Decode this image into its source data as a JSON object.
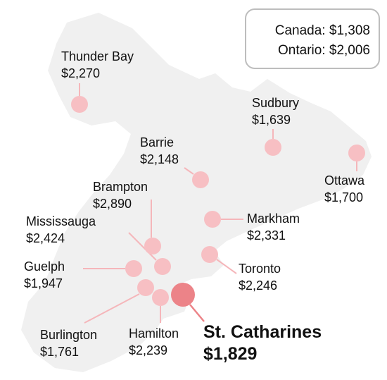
{
  "summary": {
    "canada_label": "Canada:",
    "canada_value": "$1,308",
    "ontario_label": "Ontario:",
    "ontario_value": "$2,006"
  },
  "colors": {
    "land": "#f0f0f0",
    "marker": "#f7bfc3",
    "marker_featured": "#ec8388",
    "leader_line": "#f5b6ba",
    "leader_featured": "#ec8388"
  },
  "cities": [
    {
      "id": "thunder-bay",
      "name": "Thunder Bay",
      "value": "$2,270"
    },
    {
      "id": "sudbury",
      "name": "Sudbury",
      "value": "$1,639"
    },
    {
      "id": "barrie",
      "name": "Barrie",
      "value": "$2,148"
    },
    {
      "id": "ottawa",
      "name": "Ottawa",
      "value": "$1,700"
    },
    {
      "id": "brampton",
      "name": "Brampton",
      "value": "$2,890"
    },
    {
      "id": "mississauga",
      "name": "Mississauga",
      "value": "$2,424"
    },
    {
      "id": "markham",
      "name": "Markham",
      "value": "$2,331"
    },
    {
      "id": "guelph",
      "name": "Guelph",
      "value": "$1,947"
    },
    {
      "id": "toronto",
      "name": "Toronto",
      "value": "$2,246"
    },
    {
      "id": "burlington",
      "name": "Burlington",
      "value": "$1,761"
    },
    {
      "id": "hamilton",
      "name": "Hamilton",
      "value": "$2,239"
    },
    {
      "id": "st-catharines",
      "name": "St. Catharines",
      "value": "$1,829",
      "featured": true
    }
  ]
}
